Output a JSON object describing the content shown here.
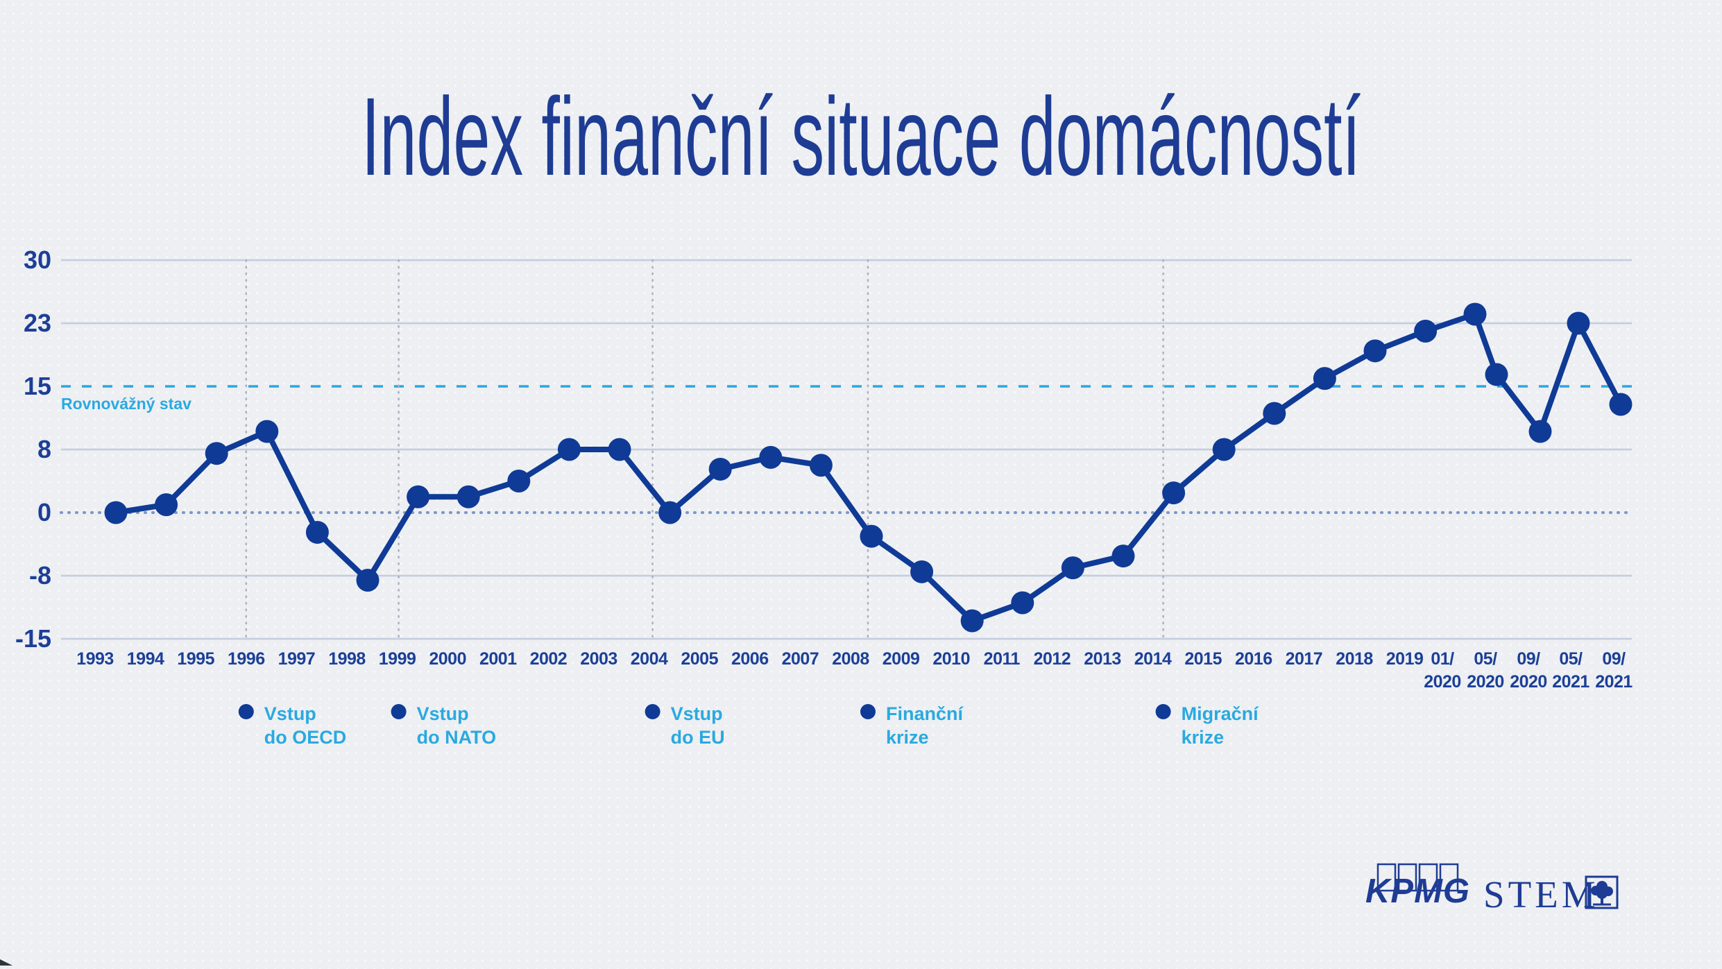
{
  "title": "Index finanční situace domácností",
  "equilibrium_label": "Rovnovážný stav",
  "logos": {
    "kpmg": "KPMG",
    "stem": "STEM"
  },
  "chart_data": {
    "type": "line",
    "title": "Index finanční situace domácností",
    "categories": [
      "1993",
      "1994",
      "1995",
      "1996",
      "1997",
      "1998",
      "1999",
      "2000",
      "2001",
      "2002",
      "2003",
      "2004",
      "2005",
      "2006",
      "2007",
      "2008",
      "2009",
      "2010",
      "2011",
      "2012",
      "2013",
      "2014",
      "2015",
      "2016",
      "2017",
      "2018",
      "2019",
      "01/2020",
      "05/2020",
      "09/2020",
      "05/2021",
      "09/2021"
    ],
    "values": [
      0,
      1,
      7.5,
      10,
      -2.5,
      -8.5,
      2,
      2,
      4,
      8,
      8,
      0,
      5.5,
      7,
      6,
      -3,
      -7.5,
      -13,
      -11,
      -7,
      -5.5,
      2.5,
      8,
      12,
      16,
      19.5,
      22,
      24,
      16.5,
      10,
      23,
      13
    ],
    "y_ticks": [
      30,
      23,
      15,
      8,
      0,
      -8,
      -15
    ],
    "ylim": [
      -15,
      30
    ],
    "grid": true,
    "legend": false,
    "equilibrium_line": {
      "value": 15,
      "label": "Rovnovážný stav"
    },
    "zero_line": 0,
    "annotations": [
      {
        "lines": [
          "Vstup",
          "do OECD"
        ],
        "at_category": "1996",
        "dx": 0
      },
      {
        "lines": [
          "Vstup",
          "do NATO"
        ],
        "at_category": "1999",
        "dx": 2
      },
      {
        "lines": [
          "Vstup",
          "do EU"
        ],
        "at_category": "2004",
        "dx": 5
      },
      {
        "lines": [
          "Finanční",
          "krize"
        ],
        "at_category": "2008",
        "dx": 25
      },
      {
        "lines": [
          "Migrační",
          "krize"
        ],
        "at_category": "2014",
        "dx": 15
      }
    ],
    "colors": {
      "navy": "#0f3a96",
      "light_blue": "#2aa9e0",
      "grid": "#c3cdde",
      "zero_dots": "#7d95c5",
      "vline_dots": "#a9b1bf",
      "text_navy": "#1c3f97",
      "background": "#edeff2"
    }
  }
}
